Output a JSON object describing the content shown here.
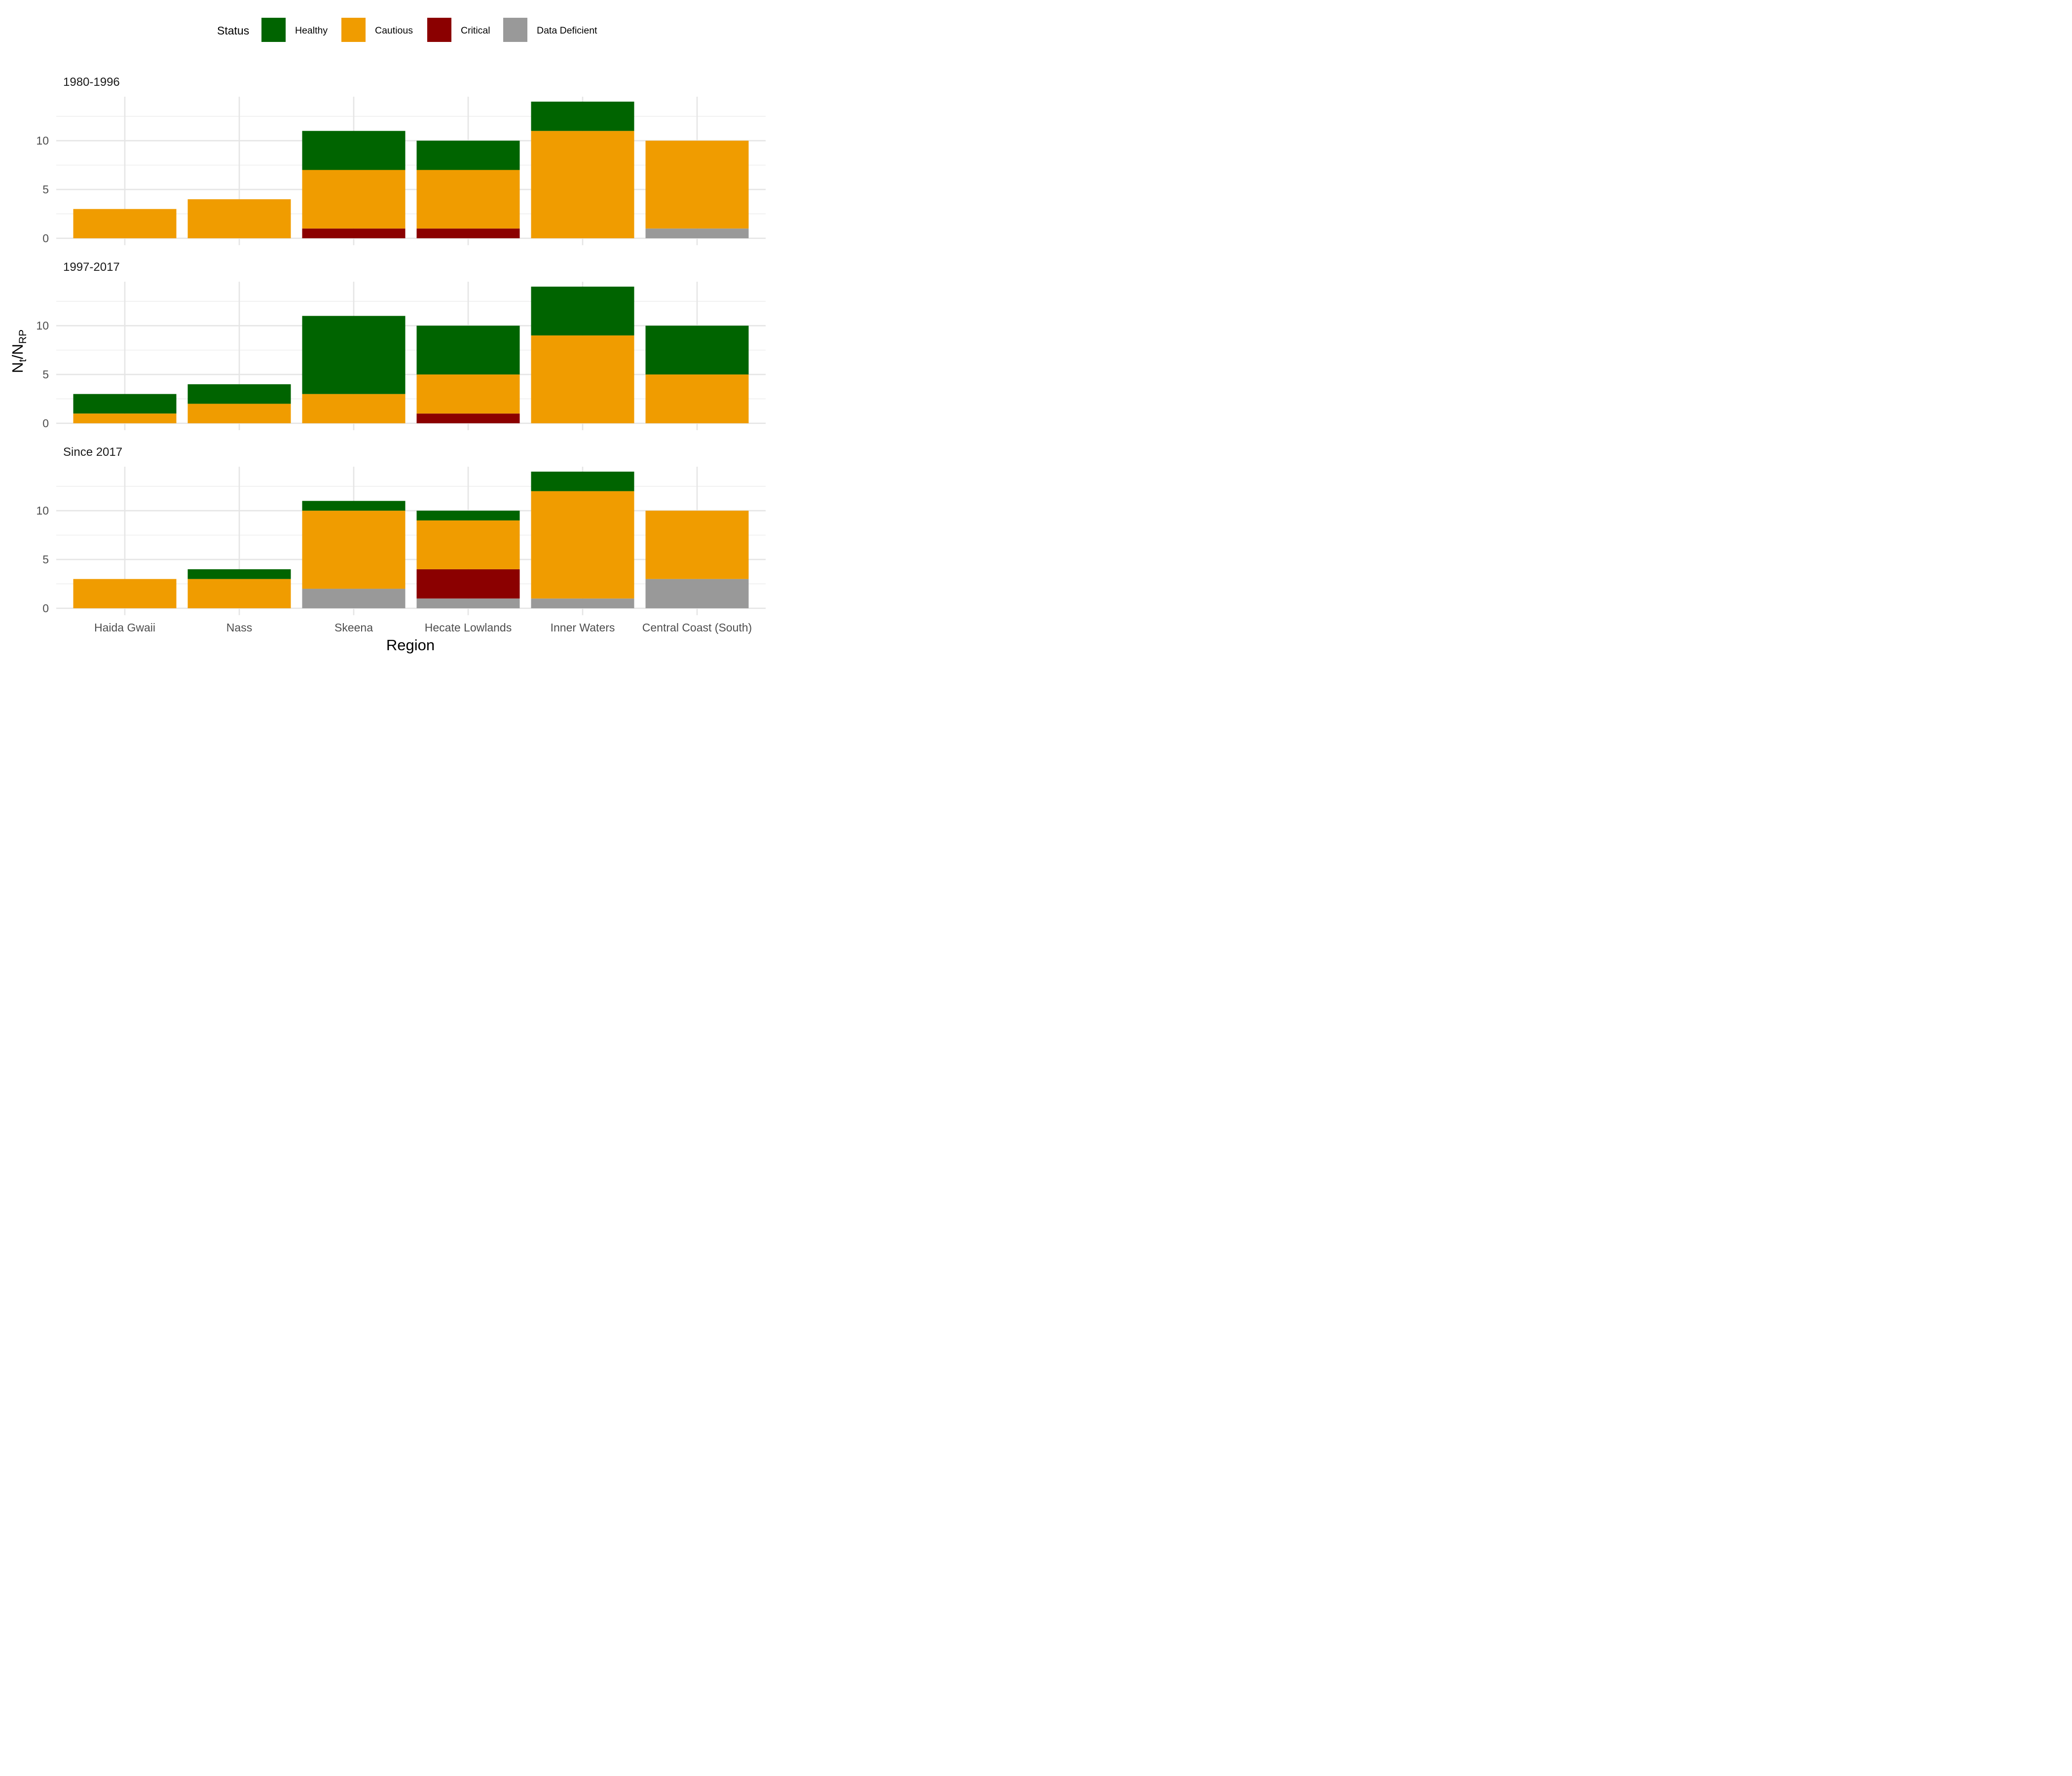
{
  "chart_data": {
    "type": "bar",
    "stacked": true,
    "xlabel": "Region",
    "ylabel": {
      "base": "N",
      "sub1": "t",
      "slash": "/",
      "base2": "N",
      "sub2": "RP"
    },
    "ylim": [
      0,
      14
    ],
    "y_ticks": [
      "0",
      "5",
      "10"
    ],
    "grid": true,
    "legend": {
      "position": "top",
      "title": "Status",
      "entries": [
        {
          "key": "healthy",
          "label": "Healthy",
          "color": "#006400"
        },
        {
          "key": "cautious",
          "label": "Cautious",
          "color": "#F09C00"
        },
        {
          "key": "critical",
          "label": "Critical",
          "color": "#8B0000"
        },
        {
          "key": "dd",
          "label": "Data Deficient",
          "color": "#999999"
        }
      ]
    },
    "categories": [
      "Haida Gwaii",
      "Nass",
      "Skeena",
      "Hecate Lowlands",
      "Inner Waters",
      "Central Coast (South)"
    ],
    "stack_order_bottom_to_top": [
      "dd",
      "critical",
      "cautious",
      "healthy"
    ],
    "facets": [
      {
        "title": "1980-1996",
        "series": [
          {
            "key": "healthy",
            "values": [
              0,
              0,
              4,
              3,
              3,
              0
            ]
          },
          {
            "key": "cautious",
            "values": [
              3,
              4,
              6,
              6,
              11,
              9
            ]
          },
          {
            "key": "critical",
            "values": [
              0,
              0,
              1,
              1,
              0,
              0
            ]
          },
          {
            "key": "dd",
            "values": [
              0,
              0,
              0,
              0,
              0,
              1
            ]
          }
        ]
      },
      {
        "title": "1997-2017",
        "series": [
          {
            "key": "healthy",
            "values": [
              2,
              2,
              8,
              5,
              5,
              5
            ]
          },
          {
            "key": "cautious",
            "values": [
              1,
              2,
              3,
              4,
              9,
              5
            ]
          },
          {
            "key": "critical",
            "values": [
              0,
              0,
              0,
              1,
              0,
              0
            ]
          },
          {
            "key": "dd",
            "values": [
              0,
              0,
              0,
              0,
              0,
              0
            ]
          }
        ]
      },
      {
        "title": "Since 2017",
        "series": [
          {
            "key": "healthy",
            "values": [
              0,
              1,
              1,
              1,
              2,
              0
            ]
          },
          {
            "key": "cautious",
            "values": [
              3,
              3,
              8,
              5,
              11,
              7
            ]
          },
          {
            "key": "critical",
            "values": [
              0,
              0,
              0,
              3,
              0,
              0
            ]
          },
          {
            "key": "dd",
            "values": [
              0,
              0,
              2,
              1,
              1,
              3
            ]
          }
        ]
      }
    ]
  }
}
